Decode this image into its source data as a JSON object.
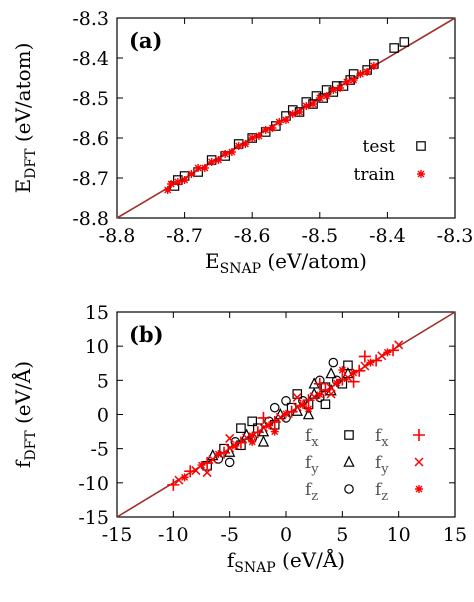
{
  "colors": {
    "test": "#000000",
    "train": "#ff0000",
    "diagonal": "#a0302a"
  },
  "chart_data": [
    {
      "type": "scatter",
      "panel_label": "(a)",
      "xlabel_main": "E",
      "xlabel_sub": "SNAP",
      "xlabel_unit": " (eV/atom)",
      "ylabel_main": "E",
      "ylabel_sub": "DFT",
      "ylabel_unit": " (eV/atom)",
      "xlim": [
        -8.8,
        -8.3
      ],
      "ylim": [
        -8.8,
        -8.3
      ],
      "xticks": [
        "-8.8",
        "-8.7",
        "-8.6",
        "-8.5",
        "-8.4",
        "-8.3"
      ],
      "yticks": [
        "-8.8",
        "-8.7",
        "-8.6",
        "-8.5",
        "-8.4",
        "-8.3"
      ],
      "diagonal": [
        [
          -8.8,
          -8.8
        ],
        [
          -8.3,
          -8.3
        ]
      ],
      "series": [
        {
          "name": "test",
          "marker": "square",
          "points": [
            [
              -8.375,
              -8.36
            ],
            [
              -8.39,
              -8.375
            ],
            [
              -8.42,
              -8.415
            ],
            [
              -8.43,
              -8.43
            ],
            [
              -8.45,
              -8.44
            ],
            [
              -8.455,
              -8.455
            ],
            [
              -8.465,
              -8.47
            ],
            [
              -8.475,
              -8.47
            ],
            [
              -8.48,
              -8.485
            ],
            [
              -8.49,
              -8.48
            ],
            [
              -8.495,
              -8.5
            ],
            [
              -8.505,
              -8.495
            ],
            [
              -8.51,
              -8.515
            ],
            [
              -8.52,
              -8.51
            ],
            [
              -8.53,
              -8.535
            ],
            [
              -8.54,
              -8.53
            ],
            [
              -8.55,
              -8.545
            ],
            [
              -8.565,
              -8.57
            ],
            [
              -8.58,
              -8.585
            ],
            [
              -8.6,
              -8.6
            ],
            [
              -8.62,
              -8.615
            ],
            [
              -8.64,
              -8.645
            ],
            [
              -8.66,
              -8.655
            ],
            [
              -8.68,
              -8.685
            ],
            [
              -8.7,
              -8.695
            ],
            [
              -8.71,
              -8.705
            ],
            [
              -8.715,
              -8.72
            ]
          ]
        },
        {
          "name": "train",
          "marker": "star",
          "points": [
            [
              -8.725,
              -8.73
            ],
            [
              -8.72,
              -8.715
            ],
            [
              -8.71,
              -8.71
            ],
            [
              -8.7,
              -8.705
            ],
            [
              -8.69,
              -8.69
            ],
            [
              -8.68,
              -8.675
            ],
            [
              -8.67,
              -8.675
            ],
            [
              -8.66,
              -8.66
            ],
            [
              -8.65,
              -8.655
            ],
            [
              -8.64,
              -8.64
            ],
            [
              -8.63,
              -8.635
            ],
            [
              -8.62,
              -8.62
            ],
            [
              -8.61,
              -8.615
            ],
            [
              -8.6,
              -8.6
            ],
            [
              -8.59,
              -8.595
            ],
            [
              -8.58,
              -8.58
            ],
            [
              -8.57,
              -8.575
            ],
            [
              -8.56,
              -8.56
            ],
            [
              -8.55,
              -8.555
            ],
            [
              -8.54,
              -8.54
            ],
            [
              -8.53,
              -8.535
            ],
            [
              -8.52,
              -8.52
            ],
            [
              -8.51,
              -8.515
            ],
            [
              -8.5,
              -8.5
            ],
            [
              -8.49,
              -8.495
            ],
            [
              -8.48,
              -8.48
            ],
            [
              -8.47,
              -8.475
            ],
            [
              -8.46,
              -8.46
            ],
            [
              -8.45,
              -8.455
            ],
            [
              -8.44,
              -8.44
            ],
            [
              -8.43,
              -8.435
            ],
            [
              -8.42,
              -8.42
            ]
          ]
        }
      ],
      "legend": [
        {
          "label": "test",
          "marker": "square",
          "color": "#000000"
        },
        {
          "label": "train",
          "marker": "star",
          "color": "#ff0000"
        }
      ],
      "legend_position": "bottom-right"
    },
    {
      "type": "scatter",
      "panel_label": "(b)",
      "xlabel_main": "f",
      "xlabel_sub": "SNAP",
      "xlabel_unit": " (eV/Å)",
      "ylabel_main": "f",
      "ylabel_sub": "DFT",
      "ylabel_unit": " (eV/Å)",
      "xlim": [
        -15,
        15
      ],
      "ylim": [
        -15,
        15
      ],
      "xticks": [
        "-15",
        "-10",
        "-5",
        "0",
        "5",
        "10",
        "15"
      ],
      "yticks": [
        "-15",
        "-10",
        "-5",
        "0",
        "5",
        "10",
        "15"
      ],
      "diagonal": [
        [
          -15,
          -15
        ],
        [
          15,
          15
        ]
      ],
      "series": [
        {
          "name": "test",
          "marker": "mixed",
          "points": [
            [
              -7,
              -7.5
            ],
            [
              -6.5,
              -6
            ],
            [
              -6,
              -6.5
            ],
            [
              -5.5,
              -5
            ],
            [
              -5,
              -5.5
            ],
            [
              -4.5,
              -4
            ],
            [
              -4,
              -4.5
            ],
            [
              -3.5,
              -3
            ],
            [
              -3,
              -3.5
            ],
            [
              -2.5,
              -2
            ],
            [
              -2,
              -2.5
            ],
            [
              -1.5,
              -1
            ],
            [
              -1,
              -1.5
            ],
            [
              -0.5,
              0
            ],
            [
              0,
              -0.5
            ],
            [
              0.5,
              1
            ],
            [
              1,
              0.5
            ],
            [
              1.5,
              2
            ],
            [
              2,
              1.5
            ],
            [
              2.5,
              3
            ],
            [
              3,
              2.5
            ],
            [
              3.5,
              4
            ],
            [
              4,
              3.5
            ],
            [
              4.5,
              5
            ],
            [
              5,
              4.5
            ],
            [
              5.5,
              6
            ],
            [
              4.2,
              7.6
            ],
            [
              5.5,
              7.2
            ],
            [
              -2,
              -4
            ],
            [
              -1,
              1
            ],
            [
              1,
              3
            ],
            [
              2,
              0
            ],
            [
              3,
              5
            ],
            [
              -3,
              -1
            ],
            [
              4,
              6
            ],
            [
              0,
              2
            ],
            [
              -4,
              -2
            ],
            [
              2.5,
              4.5
            ],
            [
              -5,
              -7
            ],
            [
              3.5,
              1.5
            ]
          ]
        },
        {
          "name": "train",
          "marker": "cross",
          "points": [
            [
              -10,
              -10.3
            ],
            [
              -9.5,
              -9.6
            ],
            [
              -9,
              -9.2
            ],
            [
              -8.5,
              -8.3
            ],
            [
              -8,
              -8.2
            ],
            [
              -7.5,
              -7.4
            ],
            [
              -7,
              -7.1
            ],
            [
              -6.5,
              -6.6
            ],
            [
              -6,
              -5.8
            ],
            [
              -5.5,
              -5.6
            ],
            [
              -5,
              -4.9
            ],
            [
              -4.5,
              -4.6
            ],
            [
              -4,
              -4.1
            ],
            [
              -3.5,
              -3.4
            ],
            [
              -3,
              -3.1
            ],
            [
              -2.5,
              -2.6
            ],
            [
              -2,
              -1.9
            ],
            [
              -1.5,
              -1.6
            ],
            [
              -1,
              -1.1
            ],
            [
              -0.5,
              -0.4
            ],
            [
              0,
              0.1
            ],
            [
              0.5,
              0.4
            ],
            [
              1,
              1.1
            ],
            [
              1.5,
              1.4
            ],
            [
              2,
              2.1
            ],
            [
              2.5,
              2.6
            ],
            [
              3,
              2.9
            ],
            [
              3.5,
              3.6
            ],
            [
              4,
              3.9
            ],
            [
              4.5,
              4.6
            ],
            [
              5,
              5.1
            ],
            [
              5.5,
              5.4
            ],
            [
              6,
              6.1
            ],
            [
              6.5,
              6.4
            ],
            [
              7,
              7.1
            ],
            [
              7.5,
              7.6
            ],
            [
              8,
              7.9
            ],
            [
              8.5,
              8.6
            ],
            [
              9,
              9.1
            ],
            [
              9.5,
              9.4
            ],
            [
              10,
              10.2
            ],
            [
              -3,
              -4
            ],
            [
              -2,
              -0.5
            ],
            [
              1,
              2.5
            ],
            [
              2,
              0.8
            ],
            [
              3,
              4.5
            ],
            [
              4,
              3
            ],
            [
              5,
              6.5
            ],
            [
              6,
              4.8
            ],
            [
              -5,
              -3.5
            ],
            [
              -1,
              -2.5
            ],
            [
              7,
              8.5
            ],
            [
              -7,
              -8.5
            ]
          ]
        }
      ],
      "legend": [
        {
          "label": "f",
          "sub": "x",
          "marker": "square",
          "color": "#000000"
        },
        {
          "label": "f",
          "sub": "x",
          "marker": "plus",
          "color": "#ff0000"
        },
        {
          "label": "f",
          "sub": "y",
          "marker": "triangle",
          "color": "#000000"
        },
        {
          "label": "f",
          "sub": "y",
          "marker": "cross",
          "color": "#ff0000"
        },
        {
          "label": "f",
          "sub": "z",
          "marker": "circle",
          "color": "#000000"
        },
        {
          "label": "f",
          "sub": "z",
          "marker": "star",
          "color": "#ff0000"
        }
      ],
      "legend_position": "bottom-right"
    }
  ]
}
